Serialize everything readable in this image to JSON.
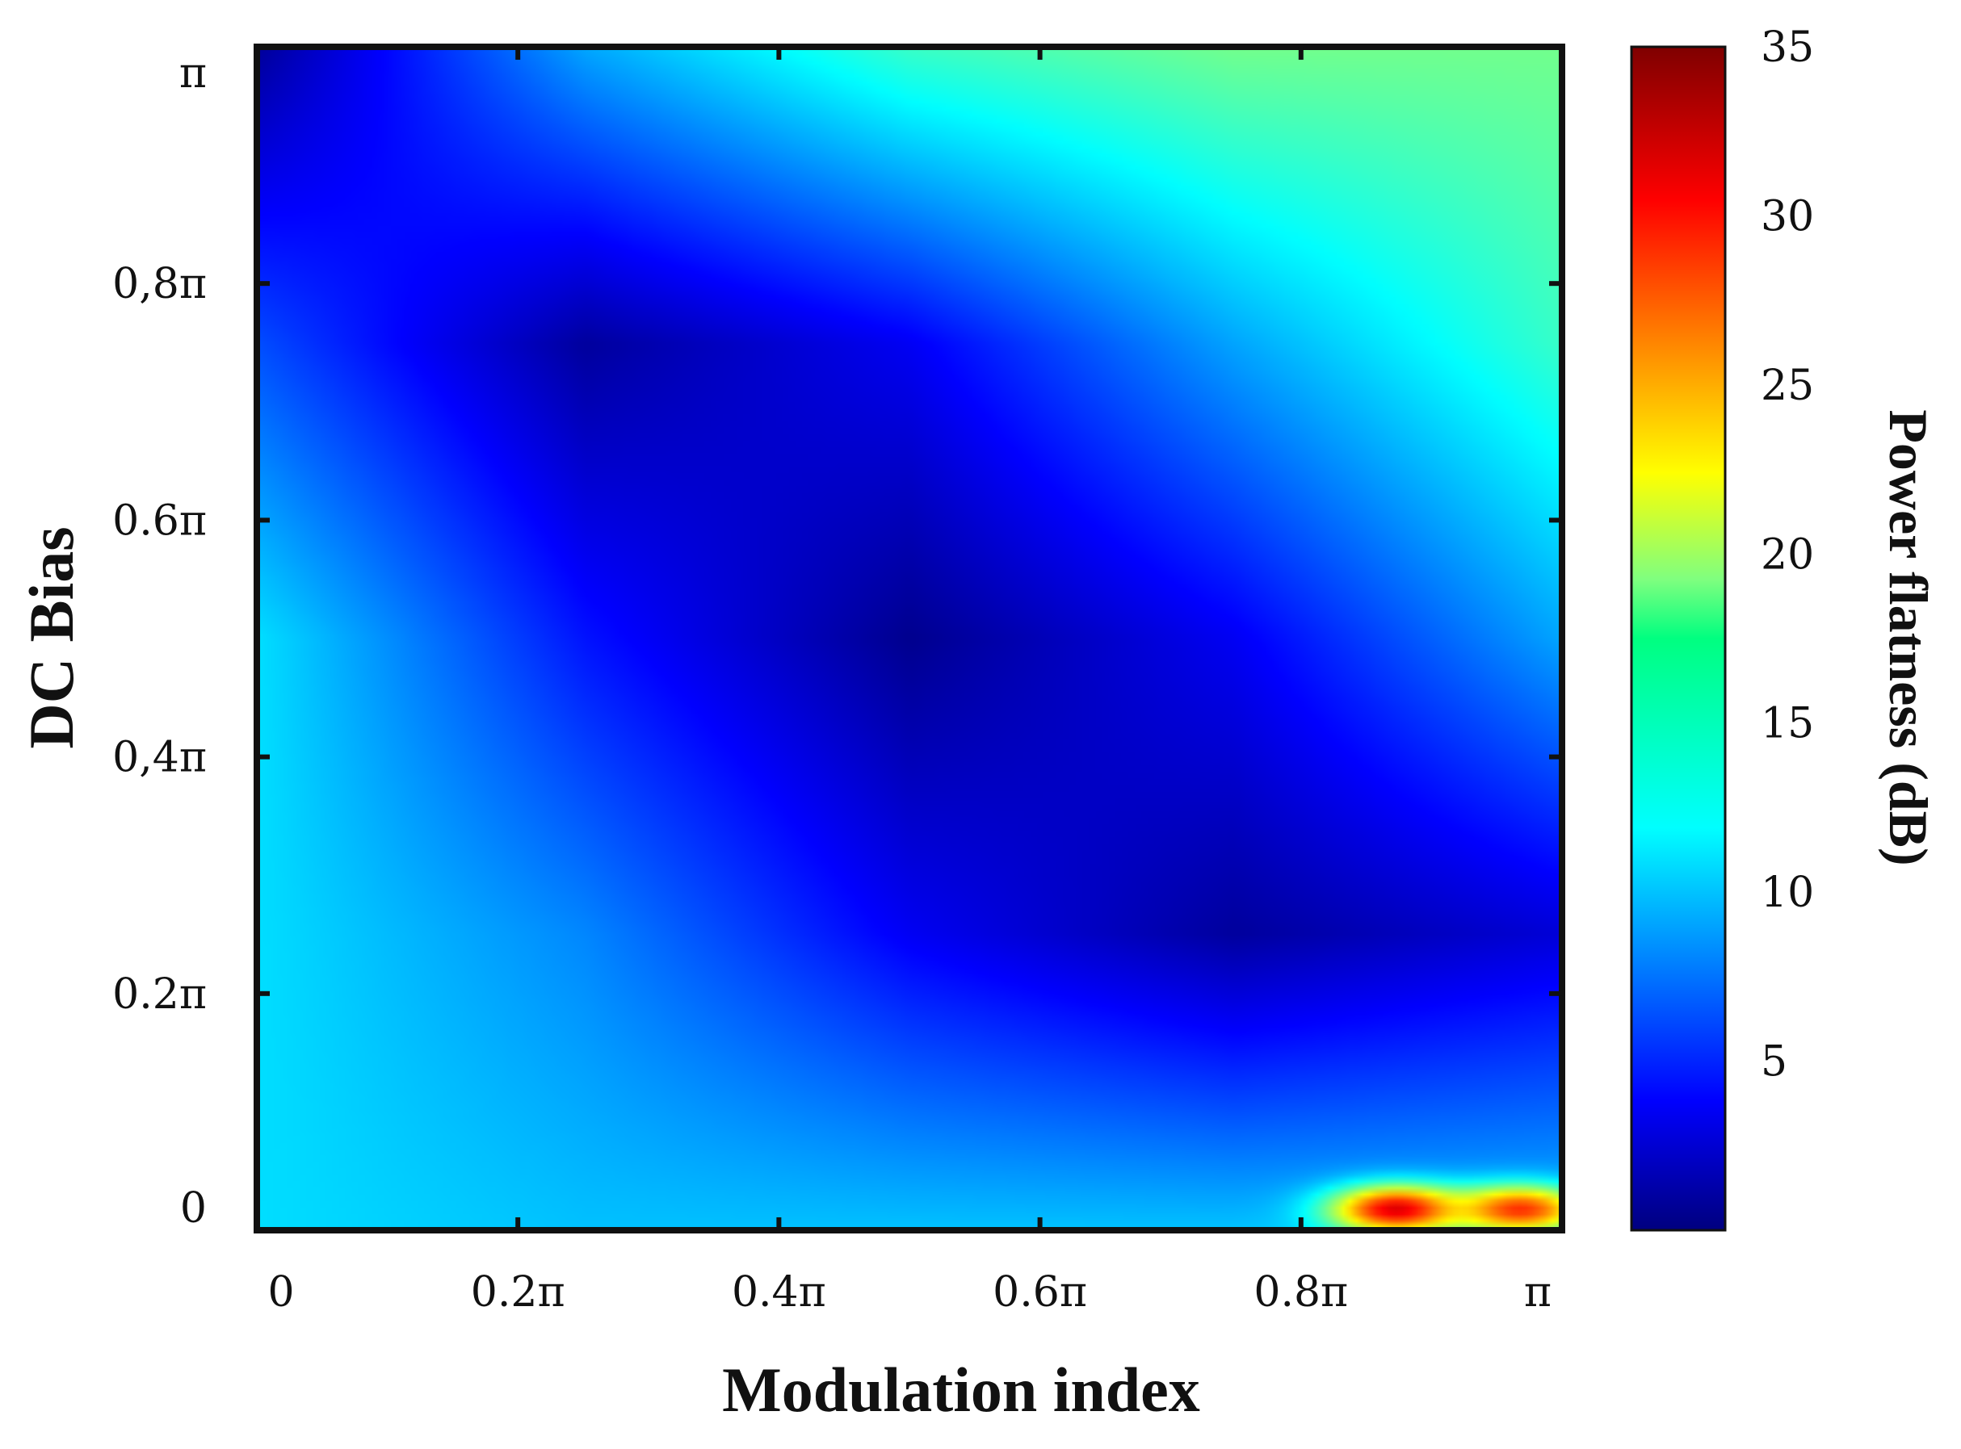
{
  "chart_data": {
    "type": "heatmap",
    "xlabel": "Modulation index",
    "ylabel": "DC Bias",
    "xlim": [
      0,
      3.1416
    ],
    "ylim": [
      0,
      3.1416
    ],
    "x_ticks": [
      {
        "value": 0,
        "label": "0"
      },
      {
        "value": 0.6283,
        "label": "0.2π"
      },
      {
        "value": 1.2566,
        "label": "0.4π"
      },
      {
        "value": 1.885,
        "label": "0.6π"
      },
      {
        "value": 2.5133,
        "label": "0.8π"
      },
      {
        "value": 3.1416,
        "label": "π"
      }
    ],
    "y_ticks": [
      {
        "value": 0,
        "label": "0"
      },
      {
        "value": 0.6283,
        "label": "0.2π"
      },
      {
        "value": 1.2566,
        "label": "0,4π"
      },
      {
        "value": 1.885,
        "label": "0.6π"
      },
      {
        "value": 2.5133,
        "label": "0,8π"
      },
      {
        "value": 3.1416,
        "label": "π"
      }
    ],
    "colorbar": {
      "label": "Power flatness (dB)",
      "range": [
        0,
        35
      ],
      "ticks": [
        5,
        10,
        15,
        20,
        25,
        30,
        35
      ],
      "colormap": "jet"
    },
    "z_grid": {
      "x_samples_in_pi": [
        0,
        0.25,
        0.5,
        0.75,
        1
      ],
      "y_samples_in_pi": [
        0,
        0.25,
        0.5,
        0.75,
        1
      ],
      "rows_from_y0": [
        [
          12,
          11,
          11,
          11,
          11
        ],
        [
          12,
          9,
          4,
          1,
          3
        ],
        [
          12,
          5,
          0.5,
          4,
          10
        ],
        [
          7,
          1,
          4,
          10,
          15
        ],
        [
          1,
          10,
          15,
          17,
          17
        ]
      ]
    },
    "hotspots": [
      {
        "x_pi": 0.875,
        "y_pi": 0.015,
        "value": 33
      },
      {
        "x_pi": 0.97,
        "y_pi": 0.015,
        "value": 30
      }
    ],
    "grid": false
  }
}
